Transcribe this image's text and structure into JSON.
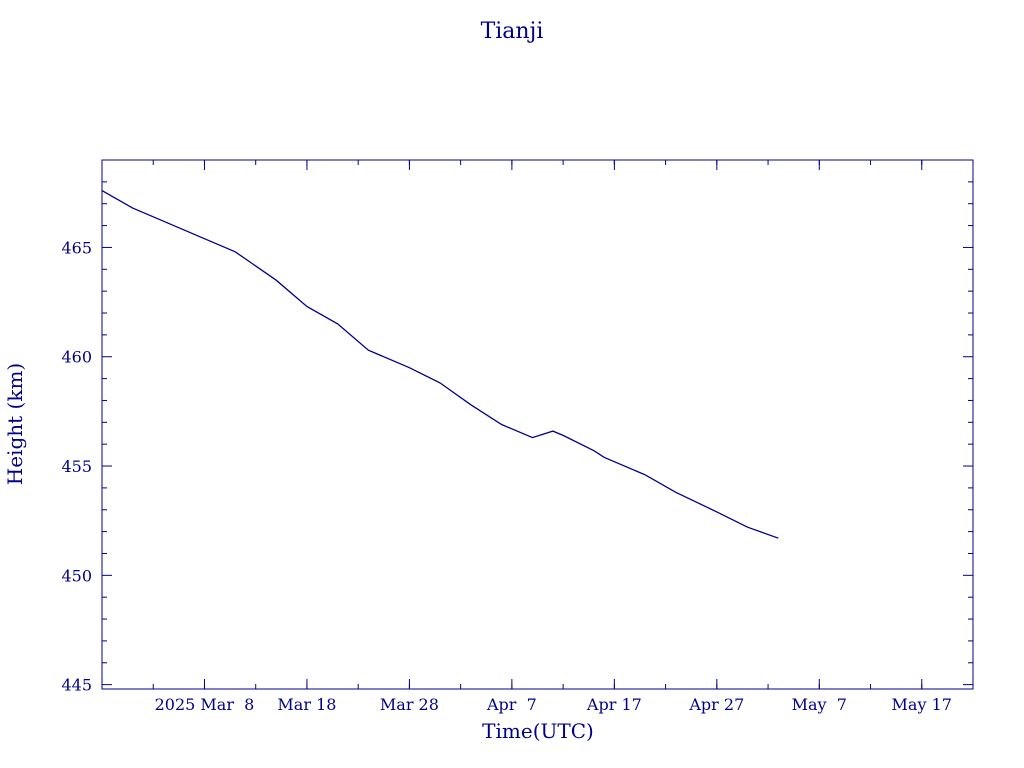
{
  "chart_data": {
    "type": "line",
    "title": "Tianji",
    "xlabel": "Time(UTC)",
    "ylabel": "Height (km)",
    "color": "#00008b",
    "x_tick_labels": [
      "2025 Mar  8",
      "Mar 18",
      "Mar 28",
      "Apr  7",
      "Apr 17",
      "Apr 27",
      "May  7",
      "May 17"
    ],
    "x_tick_dates": [
      "2025-03-08",
      "2025-03-18",
      "2025-03-28",
      "2025-04-07",
      "2025-04-17",
      "2025-04-27",
      "2025-05-07",
      "2025-05-17"
    ],
    "xlim": [
      "2025-02-26",
      "2025-05-22"
    ],
    "y_tick_labels": [
      "445",
      "450",
      "455",
      "460",
      "465"
    ],
    "ylim": [
      444.8,
      469.0
    ],
    "series": [
      {
        "x": [
          "2025-02-26",
          "2025-03-01",
          "2025-03-04",
          "2025-03-07",
          "2025-03-11",
          "2025-03-15",
          "2025-03-18",
          "2025-03-21",
          "2025-03-24",
          "2025-03-28",
          "2025-03-31",
          "2025-04-03",
          "2025-04-06",
          "2025-04-09",
          "2025-04-11",
          "2025-04-12",
          "2025-04-15",
          "2025-04-16",
          "2025-04-20",
          "2025-04-23",
          "2025-04-27",
          "2025-04-30",
          "2025-05-03"
        ],
        "y": [
          467.6,
          466.8,
          466.2,
          465.6,
          464.8,
          463.5,
          462.3,
          461.5,
          460.3,
          459.5,
          458.8,
          457.8,
          456.9,
          456.3,
          456.6,
          456.4,
          455.7,
          455.4,
          454.6,
          453.8,
          452.9,
          452.2,
          451.7
        ]
      }
    ]
  }
}
